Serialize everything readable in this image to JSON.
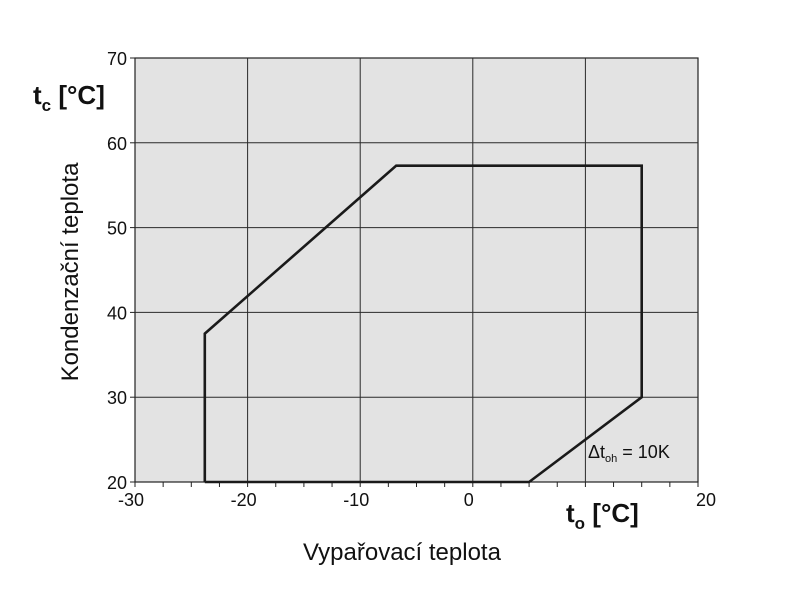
{
  "chart_data": {
    "type": "line",
    "title": "",
    "xlabel": "Vypařovací teplota",
    "ylabel": "Kondenzační teplota",
    "x_unit_label": {
      "main": "t",
      "sub": "o",
      "unit": " [°C]"
    },
    "y_unit_label": {
      "main": "t",
      "sub": "c",
      "unit": " [°C]"
    },
    "xlim": [
      -30,
      20
    ],
    "ylim": [
      20,
      70
    ],
    "x_ticks": [
      -30,
      -20,
      -10,
      0,
      10,
      20
    ],
    "x_tick_labels": [
      "-30",
      "-20",
      "-10",
      "0",
      "",
      "20"
    ],
    "y_ticks": [
      20,
      30,
      40,
      50,
      60,
      70
    ],
    "y_tick_labels": [
      "20",
      "30",
      "40",
      "50",
      "60",
      "70"
    ],
    "grid": true,
    "plot_background": "#e3e3e3",
    "line_color": "#1a1a1a",
    "series": [
      {
        "points": [
          [
            -23.8,
            20
          ],
          [
            -23.8,
            37.5
          ],
          [
            -6.8,
            57.3
          ],
          [
            15,
            57.3
          ],
          [
            15,
            30
          ],
          [
            5,
            20
          ],
          [
            -23.8,
            20
          ]
        ]
      }
    ],
    "annotation": {
      "prefix": "Δt",
      "sub": "oh",
      "suffix": " = 10K"
    }
  }
}
